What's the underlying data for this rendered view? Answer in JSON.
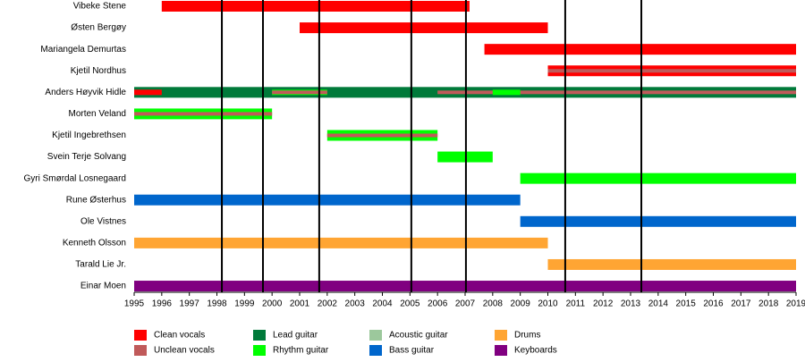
{
  "chart_data": {
    "type": "timeline",
    "xlim": [
      1995,
      2019
    ],
    "xticks": [
      1995,
      1996,
      1997,
      1998,
      1999,
      2000,
      2001,
      2002,
      2003,
      2004,
      2005,
      2006,
      2007,
      2008,
      2009,
      2010,
      2011,
      2012,
      2013,
      2014,
      2015,
      2016,
      2017,
      2018,
      2019
    ],
    "lines": [
      1998.18,
      1999.67,
      2001.71,
      2005.05,
      2007.03,
      2010.63,
      2013.39
    ],
    "roles": [
      {
        "name": "Clean vocals",
        "color": "#ff0000"
      },
      {
        "name": "Unclean vocals",
        "color": "#c05a5a"
      },
      {
        "name": "Lead guitar",
        "color": "#007a3a"
      },
      {
        "name": "Rhythm guitar",
        "color": "#00ff00"
      },
      {
        "name": "Acoustic guitar",
        "color": "#9cc89c"
      },
      {
        "name": "Bass guitar",
        "color": "#0066cc"
      },
      {
        "name": "Drums",
        "color": "#ffa533"
      },
      {
        "name": "Keyboards",
        "color": "#800080"
      }
    ],
    "members": [
      {
        "name": "Vibeke Stene",
        "bars": [
          {
            "role": 0,
            "start": 1996,
            "end": 2007.16,
            "overlay": 0
          }
        ]
      },
      {
        "name": "Østen Bergøy",
        "bars": [
          {
            "role": 0,
            "start": 2001,
            "end": 2010,
            "overlay": 0
          }
        ]
      },
      {
        "name": "Mariangela Demurtas",
        "bars": [
          {
            "role": 0,
            "start": 2007.7,
            "end": 2019,
            "overlay": 0
          }
        ]
      },
      {
        "name": "Kjetil Nordhus",
        "bars": [
          {
            "role": 0,
            "start": 2010,
            "end": 2019,
            "overlay": 0
          },
          {
            "role": 1,
            "start": 2010,
            "end": 2019,
            "overlay": 2
          }
        ]
      },
      {
        "name": "Anders Høyvik Hidle",
        "bars": [
          {
            "role": 2,
            "start": 1995,
            "end": 2019,
            "overlay": 0
          },
          {
            "role": 0,
            "start": 1995,
            "end": 1996,
            "overlay": 1
          },
          {
            "role": 3,
            "start": 2000,
            "end": 2002,
            "overlay": 1
          },
          {
            "role": 1,
            "start": 2000,
            "end": 2002,
            "overlay": 2
          },
          {
            "role": 1,
            "start": 2006,
            "end": 2019,
            "overlay": 2
          },
          {
            "role": 3,
            "start": 2008,
            "end": 2009,
            "overlay": 1
          }
        ]
      },
      {
        "name": "Morten Veland",
        "bars": [
          {
            "role": 3,
            "start": 1995,
            "end": 2000,
            "overlay": 0
          },
          {
            "role": 1,
            "start": 1995,
            "end": 2000,
            "overlay": 2
          }
        ]
      },
      {
        "name": "Kjetil Ingebrethsen",
        "bars": [
          {
            "role": 3,
            "start": 2002,
            "end": 2006,
            "overlay": 0
          },
          {
            "role": 1,
            "start": 2002,
            "end": 2006,
            "overlay": 2
          }
        ]
      },
      {
        "name": "Svein Terje Solvang",
        "bars": [
          {
            "role": 3,
            "start": 2006,
            "end": 2008,
            "overlay": 0
          }
        ]
      },
      {
        "name": "Gyri Smørdal Losnegaard",
        "bars": [
          {
            "role": 3,
            "start": 2009,
            "end": 2019,
            "overlay": 0
          }
        ]
      },
      {
        "name": "Rune Østerhus",
        "bars": [
          {
            "role": 5,
            "start": 1995,
            "end": 2009,
            "overlay": 0
          }
        ]
      },
      {
        "name": "Ole Vistnes",
        "bars": [
          {
            "role": 5,
            "start": 2009,
            "end": 2019,
            "overlay": 0
          }
        ]
      },
      {
        "name": "Kenneth Olsson",
        "bars": [
          {
            "role": 6,
            "start": 1995,
            "end": 2010,
            "overlay": 0
          }
        ]
      },
      {
        "name": "Tarald Lie Jr.",
        "bars": [
          {
            "role": 6,
            "start": 2010,
            "end": 2019,
            "overlay": 0
          }
        ]
      },
      {
        "name": "Einar Moen",
        "bars": [
          {
            "role": 7,
            "start": 1995,
            "end": 2019,
            "overlay": 0
          }
        ]
      }
    ]
  }
}
